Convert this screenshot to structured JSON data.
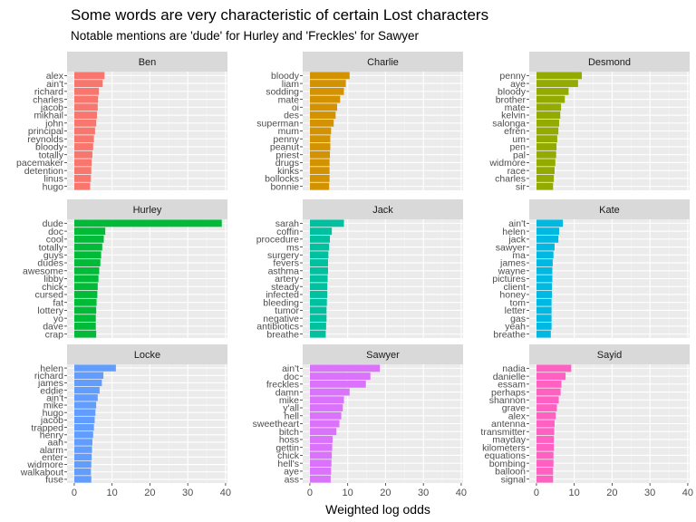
{
  "chart_data": {
    "type": "bar",
    "title": "Some words are very characteristic of certain Lost characters",
    "subtitle": "Notable mentions are 'dude' for Hurley and 'Freckles' for Sawyer",
    "xlabel": "Weighted log odds",
    "ylabel": "",
    "xlim": [
      -1.9,
      40.5
    ],
    "xticks": [
      0,
      10,
      20,
      30,
      40
    ],
    "grid": true,
    "legend": "none",
    "panel_background": "#ebebeb",
    "strip_background": "#d9d9d9",
    "panels": [
      {
        "name": "Ben",
        "color": "#f8766d",
        "words": [
          "alex",
          "ain't",
          "richard",
          "charles",
          "jacob",
          "mikhail",
          "john",
          "principal",
          "reynolds",
          "bloody",
          "totally",
          "pacemaker",
          "detention",
          "linus",
          "hugo"
        ],
        "values": [
          8.0,
          7.5,
          6.5,
          6.3,
          6.2,
          6.0,
          5.8,
          5.5,
          5.2,
          5.0,
          4.8,
          4.6,
          4.5,
          4.4,
          4.2
        ]
      },
      {
        "name": "Charlie",
        "color": "#d39200",
        "words": [
          "bloody",
          "liam",
          "sodding",
          "mate",
          "oi",
          "des",
          "superman",
          "mum",
          "penny",
          "peanut",
          "priest",
          "drugs",
          "kinks",
          "bollocks",
          "bonnie"
        ],
        "values": [
          10.5,
          9.5,
          9.0,
          8.0,
          7.2,
          6.8,
          6.3,
          5.6,
          5.4,
          5.4,
          5.3,
          5.2,
          5.2,
          5.2,
          5.1
        ]
      },
      {
        "name": "Desmond",
        "color": "#93aa00",
        "words": [
          "penny",
          "aye",
          "bloody",
          "brother",
          "mate",
          "kelvin",
          "salonga",
          "efren",
          "um",
          "pen",
          "pal",
          "widmore",
          "race",
          "charles",
          "sir"
        ],
        "values": [
          12.0,
          11.0,
          8.5,
          7.5,
          6.5,
          6.3,
          6.0,
          5.8,
          5.5,
          5.3,
          5.2,
          5.0,
          4.8,
          4.6,
          4.4
        ]
      },
      {
        "name": "Hurley",
        "color": "#00ba38",
        "words": [
          "dude",
          "doc",
          "cool",
          "totally",
          "guys",
          "dudes",
          "awesome",
          "libby",
          "chick",
          "cursed",
          "fat",
          "lottery",
          "yo",
          "dave",
          "crap"
        ],
        "values": [
          39.0,
          8.2,
          7.8,
          7.4,
          7.1,
          6.9,
          6.6,
          6.4,
          6.2,
          6.1,
          5.9,
          5.8,
          5.7,
          5.7,
          5.8
        ]
      },
      {
        "name": "Jack",
        "color": "#00c19f",
        "words": [
          "sarah",
          "coffin",
          "procedure",
          "ms",
          "surgery",
          "fevers",
          "asthma",
          "artery",
          "steady",
          "infected",
          "bleeding",
          "tumor",
          "negative",
          "antibiotics",
          "breathe"
        ],
        "values": [
          9.0,
          5.8,
          5.3,
          5.1,
          4.9,
          4.8,
          4.8,
          4.7,
          4.6,
          4.6,
          4.5,
          4.4,
          4.4,
          4.3,
          4.2
        ]
      },
      {
        "name": "Kate",
        "color": "#00b9e3",
        "words": [
          "ain't",
          "helen",
          "jack",
          "sawyer",
          "ma",
          "james",
          "wayne",
          "pictures",
          "client",
          "honey",
          "tom",
          "letter",
          "gas",
          "yeah",
          "breathe"
        ],
        "values": [
          7.0,
          6.0,
          5.8,
          4.8,
          4.5,
          4.3,
          4.2,
          4.2,
          4.1,
          4.1,
          4.0,
          4.0,
          4.0,
          4.0,
          3.8
        ]
      },
      {
        "name": "Locke",
        "color": "#619cff",
        "words": [
          "helen",
          "richard",
          "james",
          "eddie",
          "ain't",
          "mike",
          "hugo",
          "jacob",
          "trapped",
          "henry",
          "aah",
          "alarm",
          "enter",
          "widmore",
          "walkabout",
          "fuse"
        ],
        "values": [
          11.0,
          7.7,
          7.3,
          6.7,
          6.2,
          5.8,
          5.6,
          5.4,
          5.2,
          5.0,
          4.8,
          4.7,
          4.6,
          4.5,
          4.4,
          4.5
        ]
      },
      {
        "name": "Sawyer",
        "color": "#db72fb",
        "words": [
          "ain't",
          "doc",
          "freckles",
          "damn",
          "mike",
          "y'all",
          "hell",
          "sweetheart",
          "bitch",
          "hoss",
          "gettin",
          "chick",
          "hell's",
          "aye",
          "ass"
        ],
        "values": [
          18.5,
          16.0,
          14.8,
          10.5,
          9.0,
          8.7,
          8.3,
          7.8,
          7.0,
          6.0,
          5.9,
          5.8,
          5.7,
          5.6,
          5.5
        ]
      },
      {
        "name": "Sayid",
        "color": "#ff61c3",
        "words": [
          "nadia",
          "danielle",
          "essam",
          "perhaps",
          "shannon",
          "grave",
          "alex",
          "antenna",
          "transmitter",
          "mayday",
          "kilometers",
          "equations",
          "bombing",
          "balloon",
          "signal"
        ],
        "values": [
          9.2,
          7.7,
          6.6,
          6.4,
          5.9,
          5.4,
          5.1,
          4.8,
          4.7,
          4.6,
          4.6,
          4.5,
          4.5,
          4.4,
          4.4
        ]
      }
    ]
  }
}
